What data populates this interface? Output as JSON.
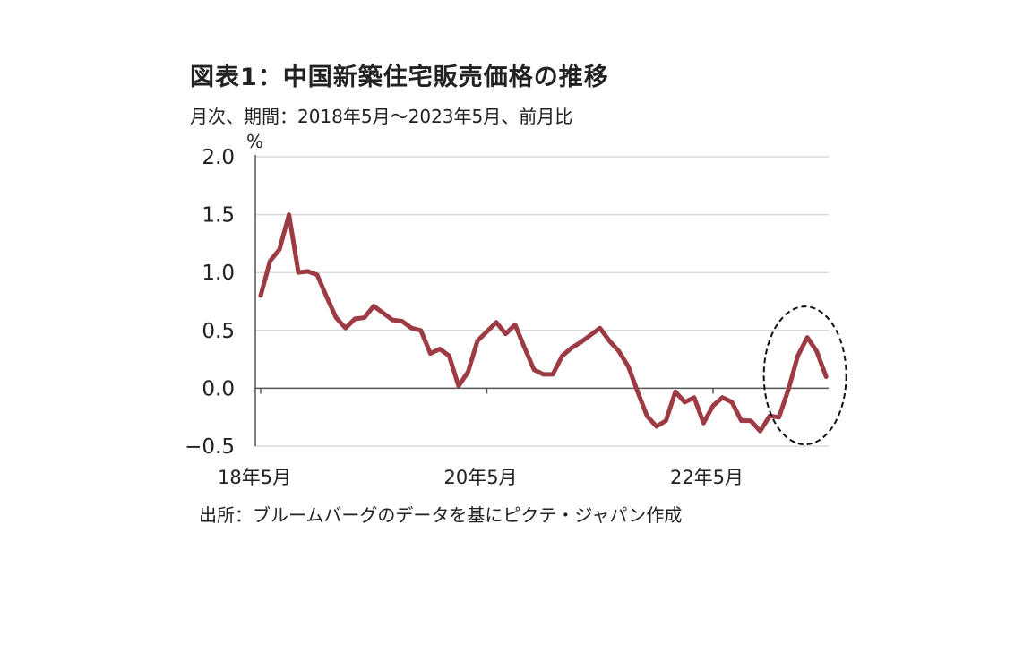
{
  "header": {
    "title": "図表1：中国新築住宅販売価格の推移",
    "subtitle": "月次、期間：2018年5月〜2023年5月、前月比"
  },
  "footer": {
    "source": "出所：ブルームバーグのデータを基にピクテ・ジャパン作成"
  },
  "colors": {
    "line": "#9c3b43",
    "grid": "#d9d9d9",
    "axis": "#555555",
    "highlight_ellipse": "#111111"
  },
  "chart_data": {
    "type": "line",
    "title": "図表1：中国新築住宅販売価格の推移",
    "subtitle": "月次、期間：2018年5月〜2023年5月、前月比",
    "ylabel": "%",
    "xlabel": "",
    "ylim": [
      -0.5,
      2.0
    ],
    "yticks": [
      -0.5,
      0.0,
      0.5,
      1.0,
      1.5,
      2.0
    ],
    "ytick_labels": [
      "−0.5",
      "0.0",
      "0.5",
      "1.0",
      "1.5",
      "2.0"
    ],
    "xticks": [
      {
        "label": "18年5月",
        "index": 0
      },
      {
        "label": "20年5月",
        "index": 24
      },
      {
        "label": "22年5月",
        "index": 48
      }
    ],
    "grid": "horizontal",
    "legend": "none",
    "series": [
      {
        "x_start": "2018-05",
        "frequency": "monthly",
        "values": [
          0.8,
          1.1,
          1.2,
          1.5,
          1.0,
          1.01,
          0.98,
          0.79,
          0.61,
          0.52,
          0.6,
          0.61,
          0.71,
          0.65,
          0.59,
          0.58,
          0.52,
          0.5,
          0.3,
          0.34,
          0.28,
          0.02,
          0.14,
          0.41,
          0.49,
          0.57,
          0.47,
          0.55,
          0.35,
          0.16,
          0.12,
          0.12,
          0.28,
          0.35,
          0.4,
          0.46,
          0.52,
          0.41,
          0.32,
          0.19,
          -0.03,
          -0.24,
          -0.33,
          -0.28,
          -0.03,
          -0.12,
          -0.08,
          -0.3,
          -0.15,
          -0.08,
          -0.12,
          -0.28,
          -0.28,
          -0.37,
          -0.24,
          -0.25,
          -0.01,
          0.28,
          0.44,
          0.32,
          0.1
        ]
      }
    ],
    "annotation": {
      "type": "dashed-ellipse",
      "around": "2022-11 to 2023-05"
    }
  }
}
